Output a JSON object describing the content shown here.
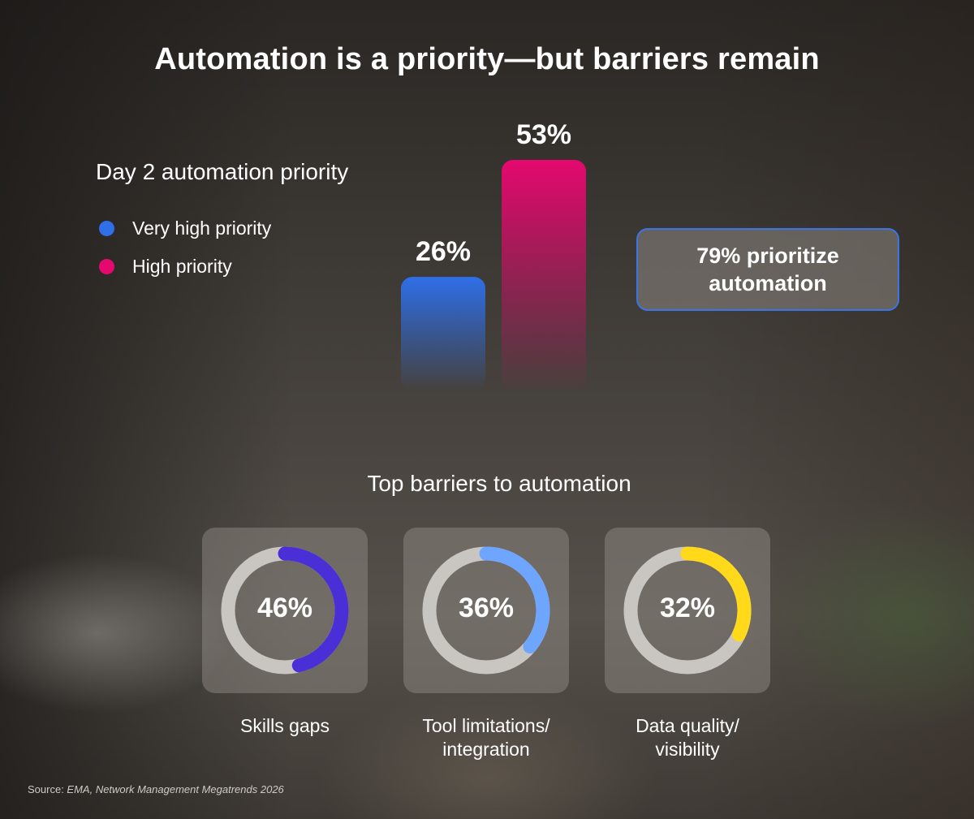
{
  "title": "Automation is a priority—but barriers remain",
  "chart_data": [
    {
      "type": "bar",
      "title": "Day 2 automation priority",
      "categories": [
        "Very high priority",
        "High priority"
      ],
      "values": [
        26,
        53
      ],
      "value_labels": [
        "26%",
        "53%"
      ],
      "colors": [
        "#2f6fe8",
        "#e5096f"
      ],
      "legend": "left",
      "ylim": [
        0,
        53
      ]
    },
    {
      "type": "pie",
      "title": "Top barriers to automation",
      "categories": [
        "Skills gaps",
        "Tool limitations/ integration",
        "Data quality/ visibility"
      ],
      "values": [
        46,
        36,
        32
      ],
      "value_labels": [
        "46%",
        "36%",
        "32%"
      ],
      "colors": [
        "#4a2fd6",
        "#6ea5ff",
        "#ffd91a"
      ]
    }
  ],
  "callout": {
    "text": "79% prioritize automation"
  },
  "barriers": [
    {
      "label_line1": "Skills gaps",
      "label_line2": ""
    },
    {
      "label_line1": "Tool limitations/",
      "label_line2": "integration"
    },
    {
      "label_line1": "Data quality/",
      "label_line2": "visibility"
    }
  ],
  "source": {
    "prefix": "Source: ",
    "text": "EMA, Network Management Megatrends 2026"
  },
  "colors": {
    "track": "#c9c6c2",
    "callout_border": "#3b74e6"
  }
}
